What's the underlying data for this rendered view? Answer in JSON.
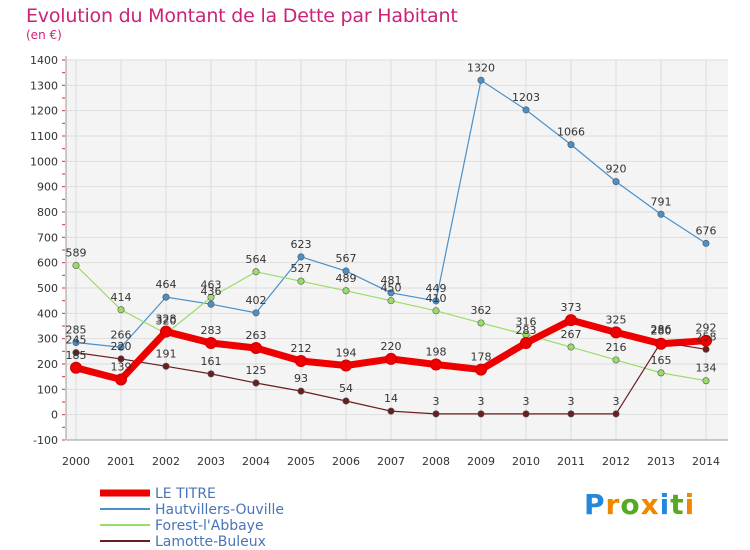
{
  "chart_data": {
    "type": "line",
    "title": "Evolution du Montant de la Dette par Habitant",
    "subtitle": "(en €)",
    "categories": [
      "2000",
      "2001",
      "2002",
      "2003",
      "2004",
      "2005",
      "2006",
      "2007",
      "2008",
      "2009",
      "2010",
      "2011",
      "2012",
      "2013",
      "2014"
    ],
    "ylim": [
      -100,
      1400
    ],
    "yticks": [
      -100,
      0,
      100,
      200,
      300,
      400,
      500,
      600,
      700,
      800,
      900,
      1000,
      1100,
      1200,
      1300,
      1400
    ],
    "grid": true,
    "legend_position": "bottom-left",
    "series": [
      {
        "name": "Hautvillers-Ouville",
        "color": "#4a90c8",
        "values": [
          285,
          266,
          464,
          436,
          402,
          623,
          567,
          481,
          449,
          1320,
          1203,
          1066,
          920,
          791,
          676
        ]
      },
      {
        "name": "Forest-l'Abbaye",
        "color": "#99dd66",
        "values": [
          589,
          414,
          320,
          463,
          564,
          527,
          489,
          450,
          410,
          362,
          316,
          267,
          216,
          165,
          134
        ]
      },
      {
        "name": "Lamotte-Buleux",
        "color": "#6b1e1e",
        "values": [
          245,
          220,
          191,
          161,
          125,
          93,
          54,
          14,
          3,
          3,
          3,
          3,
          3,
          286,
          258
        ]
      },
      {
        "name": "LE TITRE",
        "color": "#ee0000",
        "values": [
          185,
          139,
          328,
          283,
          263,
          212,
          194,
          220,
          198,
          178,
          283,
          373,
          325,
          280,
          292
        ]
      }
    ]
  },
  "logo": {
    "text": "Proxiti",
    "letters": [
      "P",
      "r",
      "o",
      "x",
      "i",
      "t",
      "i"
    ],
    "colors": [
      "#2288dd",
      "#ee8800",
      "#55aa22",
      "#ee8800",
      "#2288dd",
      "#55aa22",
      "#ee8800"
    ]
  }
}
